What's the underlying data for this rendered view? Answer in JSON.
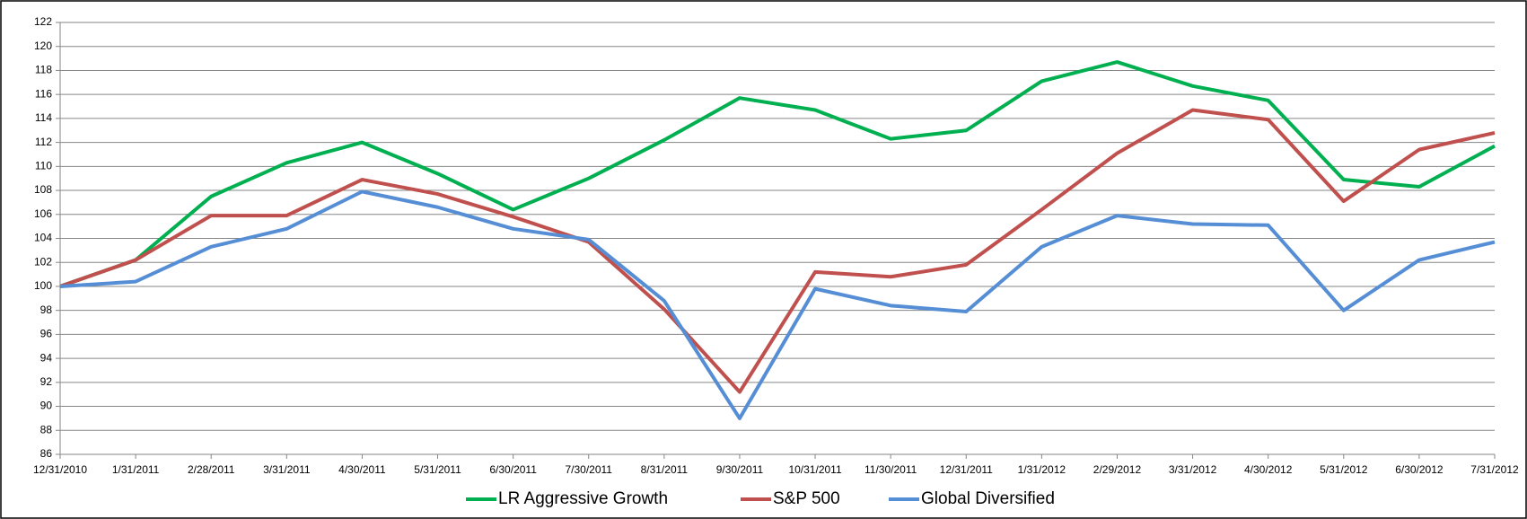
{
  "chart_data": {
    "type": "line",
    "categories": [
      "12/31/2010",
      "1/31/2011",
      "2/28/2011",
      "3/31/2011",
      "4/30/2011",
      "5/31/2011",
      "6/30/2011",
      "7/30/2011",
      "8/31/2011",
      "9/30/2011",
      "10/31/2011",
      "11/30/2011",
      "12/31/2011",
      "1/31/2012",
      "2/29/2012",
      "3/31/2012",
      "4/30/2012",
      "5/31/2012",
      "6/30/2012",
      "7/31/2012"
    ],
    "series": [
      {
        "name": "LR Aggressive Growth",
        "color": "#00b050",
        "values": [
          100,
          102.2,
          107.5,
          110.3,
          112,
          109.4,
          106.4,
          109,
          112.2,
          115.7,
          114.7,
          112.3,
          113,
          117.1,
          118.7,
          116.7,
          115.5,
          108.9,
          108.3,
          111.7
        ]
      },
      {
        "name": "S&P 500",
        "color": "#c0504d",
        "values": [
          100,
          102.2,
          105.9,
          105.9,
          108.9,
          107.7,
          105.8,
          103.7,
          98.1,
          91.2,
          101.2,
          100.8,
          101.8,
          106.4,
          111.1,
          114.7,
          113.9,
          107.1,
          111.4,
          112.8
        ]
      },
      {
        "name": "Global Diversified",
        "color": "#558ed5",
        "values": [
          100,
          100.4,
          103.3,
          104.8,
          107.9,
          106.6,
          104.8,
          103.9,
          98.8,
          89,
          99.8,
          98.4,
          97.9,
          103.3,
          105.9,
          105.2,
          105.1,
          98,
          102.2,
          103.7
        ]
      }
    ],
    "ylim": [
      86,
      122
    ],
    "yticks": [
      86,
      88,
      90,
      92,
      94,
      96,
      98,
      100,
      102,
      104,
      106,
      108,
      110,
      112,
      114,
      116,
      118,
      120,
      122
    ],
    "grid": true,
    "legend": "bottom"
  }
}
